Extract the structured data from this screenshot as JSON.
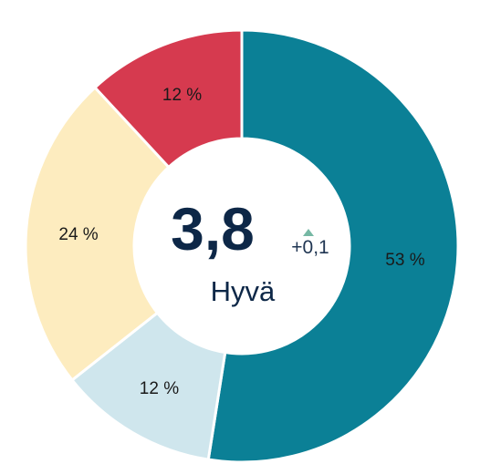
{
  "chart_data": {
    "type": "pie",
    "variant": "donut",
    "start": "top",
    "direction": "clockwise",
    "slices": [
      {
        "value": 53,
        "label": "53 %",
        "color": "#0b8096"
      },
      {
        "value": 12,
        "label": "12 %",
        "color": "#cfe6ed"
      },
      {
        "value": 24,
        "label": "24 %",
        "color": "#fdecbf"
      },
      {
        "value": 12,
        "label": "12 %",
        "color": "#d63a4f"
      }
    ],
    "center": {
      "value": "3,8",
      "rating": "Hyvä",
      "change": "+0,1",
      "change_direction": "up",
      "change_color": "#76b8a4"
    }
  }
}
